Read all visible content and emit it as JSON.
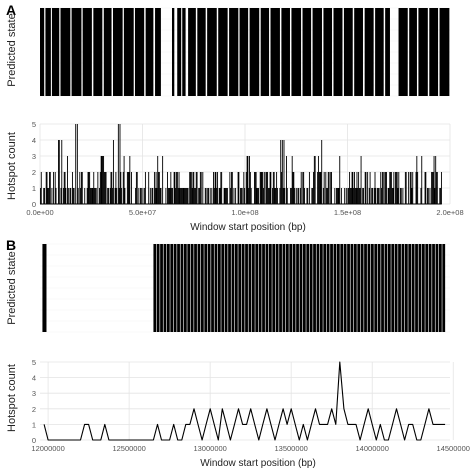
{
  "panels": {
    "A": {
      "label": "A",
      "state_panel": {
        "ylabel": "Predicted state"
      },
      "count_panel": {
        "ylabel": "Hotspot count",
        "xlabel": "Window start position (bp)",
        "x_ticks": [
          "0.0e+00",
          "5.0e+07",
          "1.0e+08",
          "1.5e+08",
          "2.0e+08"
        ],
        "y_ticks": [
          "0",
          "1",
          "2",
          "3",
          "4",
          "5"
        ]
      }
    },
    "B": {
      "label": "B",
      "state_panel": {
        "ylabel": "Predicted state"
      },
      "count_panel": {
        "ylabel": "Hotspot count",
        "xlabel": "Window start position (bp)",
        "x_ticks": [
          "12000000",
          "12500000",
          "13000000",
          "13500000",
          "14000000",
          "14500000"
        ],
        "y_ticks": [
          "0",
          "1",
          "2",
          "3",
          "4",
          "5"
        ]
      }
    }
  },
  "chart_data": [
    {
      "type": "bar",
      "panel": "A-state",
      "ylabel": "Predicted state",
      "xlim": [
        0,
        196000000
      ],
      "state_segments": [
        [
          0,
          2000000
        ],
        [
          2600000,
          5200000
        ],
        [
          5700000,
          9200000
        ],
        [
          9800000,
          14500000
        ],
        [
          15100000,
          19800000
        ],
        [
          20400000,
          24800000
        ],
        [
          25500000,
          29800000
        ],
        [
          30500000,
          34200000
        ],
        [
          34900000,
          39500000
        ],
        [
          40100000,
          44800000
        ],
        [
          45400000,
          49800000
        ],
        [
          50500000,
          54200000
        ],
        [
          55000000,
          57800000
        ],
        [
          63100000,
          64200000
        ],
        [
          65600000,
          67500000
        ],
        [
          68000000,
          69600000
        ],
        [
          70800000,
          74500000
        ],
        [
          75200000,
          79200000
        ],
        [
          79900000,
          84500000
        ],
        [
          85200000,
          89700000
        ],
        [
          90400000,
          94800000
        ],
        [
          95400000,
          99500000
        ],
        [
          100200000,
          104800000
        ],
        [
          105500000,
          109500000
        ],
        [
          110200000,
          114700000
        ],
        [
          115400000,
          119500000
        ],
        [
          120200000,
          124800000
        ],
        [
          125500000,
          129600000
        ],
        [
          130300000,
          134800000
        ],
        [
          135500000,
          139600000
        ],
        [
          140300000,
          144600000
        ],
        [
          145300000,
          149500000
        ],
        [
          150200000,
          154400000
        ],
        [
          155200000,
          159500000
        ],
        [
          160200000,
          164300000
        ],
        [
          165000000,
          167300000
        ],
        [
          171400000,
          175800000
        ],
        [
          176500000,
          180200000
        ],
        [
          180900000,
          185400000
        ],
        [
          186100000,
          190300000
        ],
        [
          191000000,
          195700000
        ]
      ]
    },
    {
      "type": "bar",
      "panel": "A-count",
      "xlabel": "Window start position (bp)",
      "ylabel": "Hotspot count",
      "xlim": [
        0,
        200000000
      ],
      "ylim": [
        0,
        5
      ],
      "x_ticks": [
        0,
        50000000,
        100000000,
        150000000,
        200000000
      ],
      "y_ticks": [
        0,
        1,
        2,
        3,
        4,
        5
      ],
      "x": [
        0,
        4000000,
        8000000,
        12000000,
        16000000,
        20000000,
        24000000,
        28000000,
        32000000,
        36000000,
        40000000,
        44000000,
        48000000,
        52000000,
        56000000,
        60000000,
        64000000,
        68000000,
        72000000,
        76000000,
        80000000,
        84000000,
        88000000,
        92000000,
        96000000,
        100000000,
        104000000,
        108000000,
        112000000,
        116000000,
        120000000,
        124000000,
        128000000,
        132000000,
        136000000,
        140000000,
        144000000,
        148000000,
        152000000,
        156000000,
        160000000,
        164000000,
        168000000,
        172000000,
        176000000,
        180000000,
        184000000,
        188000000,
        192000000
      ],
      "values": [
        2,
        3,
        4,
        3,
        5,
        3,
        2,
        3,
        4,
        5,
        3,
        2,
        3,
        2,
        3,
        2,
        2,
        1,
        2,
        2,
        1,
        2,
        2,
        2,
        2,
        3,
        2,
        2,
        3,
        4,
        3,
        2,
        2,
        3,
        4,
        2,
        3,
        3,
        2,
        3,
        2,
        2,
        2,
        3,
        2,
        3,
        3,
        2,
        3
      ]
    },
    {
      "type": "bar",
      "panel": "B-state",
      "ylabel": "Predicted state",
      "xlim": [
        11950000,
        14480000
      ],
      "state_segments": [
        [
          11965000,
          11990000
        ],
        [
          12650000,
          14450000
        ]
      ]
    },
    {
      "type": "line",
      "panel": "B-count",
      "xlabel": "Window start position (bp)",
      "ylabel": "Hotspot count",
      "xlim": [
        11950000,
        14480000
      ],
      "ylim": [
        0,
        5
      ],
      "x_ticks": [
        12000000,
        12500000,
        13000000,
        13500000,
        14000000,
        14500000
      ],
      "y_ticks": [
        0,
        1,
        2,
        3,
        4,
        5
      ],
      "x": [
        11975000,
        12000000,
        12050000,
        12100000,
        12150000,
        12200000,
        12225000,
        12250000,
        12275000,
        12300000,
        12325000,
        12350000,
        12375000,
        12400000,
        12450000,
        12500000,
        12550000,
        12600000,
        12625000,
        12650000,
        12675000,
        12700000,
        12725000,
        12750000,
        12775000,
        12800000,
        12825000,
        12850000,
        12875000,
        12900000,
        12925000,
        12950000,
        12975000,
        13000000,
        13025000,
        13050000,
        13075000,
        13100000,
        13125000,
        13150000,
        13175000,
        13200000,
        13225000,
        13250000,
        13275000,
        13300000,
        13325000,
        13350000,
        13375000,
        13400000,
        13425000,
        13450000,
        13475000,
        13500000,
        13525000,
        13550000,
        13575000,
        13600000,
        13625000,
        13650000,
        13675000,
        13700000,
        13725000,
        13750000,
        13775000,
        13800000,
        13825000,
        13850000,
        13875000,
        13900000,
        13925000,
        13950000,
        13975000,
        14000000,
        14025000,
        14050000,
        14075000,
        14100000,
        14125000,
        14150000,
        14175000,
        14200000,
        14225000,
        14250000,
        14275000,
        14300000,
        14325000,
        14350000,
        14375000,
        14400000,
        14425000,
        14450000
      ],
      "values": [
        1,
        0,
        0,
        0,
        0,
        0,
        1,
        1,
        0,
        0,
        0,
        1,
        0,
        0,
        0,
        0,
        0,
        0,
        0,
        0,
        1,
        0,
        0,
        0,
        1,
        0,
        0,
        1,
        1,
        2,
        1,
        0,
        1,
        2,
        1,
        0,
        2,
        1,
        0,
        1,
        2,
        1,
        1,
        2,
        1,
        0,
        1,
        2,
        1,
        0,
        1,
        2,
        1,
        2,
        1,
        0,
        1,
        0,
        1,
        2,
        1,
        1,
        1,
        2,
        1,
        5,
        2,
        1,
        1,
        1,
        0,
        1,
        2,
        1,
        0,
        1,
        0,
        0,
        1,
        2,
        1,
        0,
        1,
        1,
        0,
        0,
        1,
        2,
        1,
        1,
        1,
        1
      ]
    }
  ]
}
